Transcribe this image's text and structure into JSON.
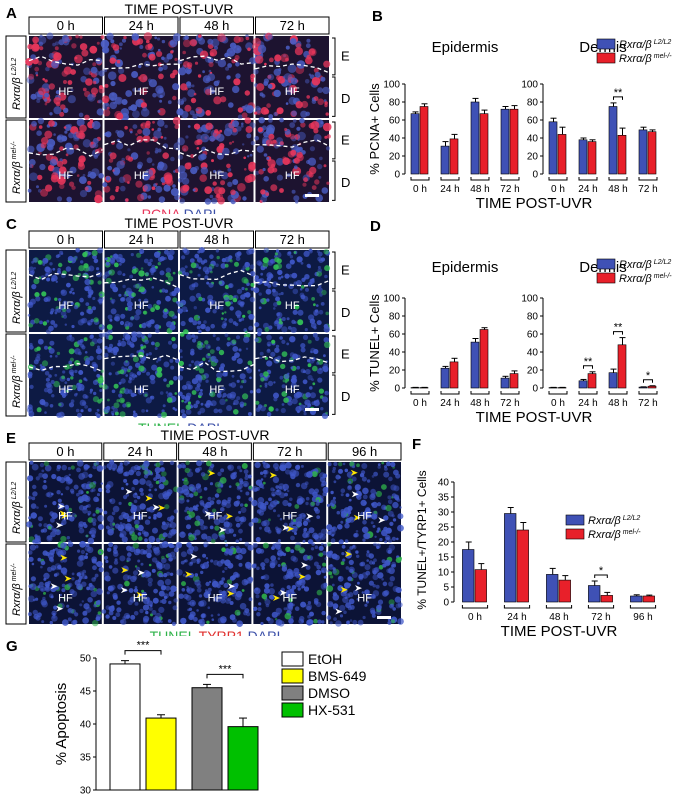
{
  "panels": {
    "A": {
      "letter": "A",
      "header": "TIME POST-UVR",
      "times": [
        "0 h",
        "24 h",
        "48 h",
        "72 h"
      ],
      "rows": [
        {
          "label": "Rxrα/β",
          "sup": "L2/L2"
        },
        {
          "label": "Rxrα/β",
          "sup": "mel-/-"
        }
      ],
      "layers": [
        "E",
        "D"
      ],
      "hf": "HF",
      "stain1": "PCNA",
      "stain2": "DAPI",
      "colors": {
        "stain1": "#e8365b",
        "stain2": "#3b4fa8"
      }
    },
    "C": {
      "letter": "C",
      "header": "TIME POST-UVR",
      "times": [
        "0 h",
        "24 h",
        "48 h",
        "72 h"
      ],
      "rows": [
        {
          "label": "Rxrα/β",
          "sup": "L2/L2"
        },
        {
          "label": "Rxrα/β",
          "sup": "mel-/-"
        }
      ],
      "layers": [
        "E",
        "D"
      ],
      "hf": "HF",
      "stain1": "TUNEL",
      "stain2": "DAPI",
      "colors": {
        "stain1": "#2fb34a",
        "stain2": "#3b4fa8"
      }
    },
    "E": {
      "letter": "E",
      "header": "TIME POST-UVR",
      "times": [
        "0 h",
        "24 h",
        "48 h",
        "72 h",
        "96 h"
      ],
      "rows": [
        {
          "label": "Rxrα/β",
          "sup": "L2/L2"
        },
        {
          "label": "Rxrα/β",
          "sup": "mel-/-"
        }
      ],
      "hf": "HF",
      "stain1": "TUNEL",
      "stain2": "TYRP1",
      "stain3": "DAPI",
      "colors": {
        "stain1": "#2fb34a",
        "stain2": "#e0302e",
        "stain3": "#3b4fa8"
      }
    }
  },
  "legend": {
    "ctrl": {
      "label": "Rxrα/β",
      "sup": "L2/L2"
    },
    "mut": {
      "label": "Rxrα/β",
      "sup": "mel-/-"
    }
  },
  "colors": {
    "ctrl": "#3f51b5",
    "mut": "#e8202a"
  },
  "chart_data": [
    {
      "panel": "B",
      "type": "bar",
      "ylabel": "% PCNA+ Cells",
      "xlabel": "TIME POST-UVR",
      "ylim": [
        0,
        100
      ],
      "yticks": [
        0,
        20,
        40,
        60,
        80,
        100
      ],
      "subcharts": [
        {
          "title": "Epidermis",
          "categories": [
            "0 h",
            "24 h",
            "48 h",
            "72 h"
          ],
          "series": [
            {
              "values": [
                67,
                31,
                80,
                72
              ],
              "errors": [
                2,
                5,
                4,
                3
              ]
            },
            {
              "values": [
                75,
                39,
                67,
                72
              ],
              "errors": [
                3,
                5,
                4,
                4
              ]
            }
          ],
          "annotations": []
        },
        {
          "title": "Dermis",
          "categories": [
            "0 h",
            "24 h",
            "48 h",
            "72 h"
          ],
          "series": [
            {
              "values": [
                58,
                38,
                75,
                49
              ],
              "errors": [
                4,
                2,
                4,
                3
              ]
            },
            {
              "values": [
                44,
                36,
                43,
                47
              ],
              "errors": [
                8,
                2,
                8,
                2
              ]
            }
          ],
          "annotations": [
            {
              "category": 2,
              "text": "**"
            }
          ]
        }
      ]
    },
    {
      "panel": "D",
      "type": "bar",
      "ylabel": "% TUNEL+ Cells",
      "xlabel": "TIME POST-UVR",
      "ylim": [
        0,
        100
      ],
      "yticks": [
        0,
        20,
        40,
        60,
        80,
        100
      ],
      "subcharts": [
        {
          "title": "Epidermis",
          "categories": [
            "0 h",
            "24 h",
            "48 h",
            "72 h"
          ],
          "series": [
            {
              "values": [
                0.5,
                22,
                51,
                11
              ],
              "errors": [
                0.2,
                2,
                4,
                2
              ]
            },
            {
              "values": [
                0.5,
                29,
                65,
                16
              ],
              "errors": [
                0.2,
                4,
                2,
                3
              ]
            }
          ],
          "annotations": []
        },
        {
          "title": "Dermis",
          "categories": [
            "0 h",
            "24 h",
            "48 h",
            "72 h"
          ],
          "series": [
            {
              "values": [
                0.5,
                8,
                17,
                1
              ],
              "errors": [
                0.2,
                1.5,
                4,
                0.3
              ]
            },
            {
              "values": [
                0.5,
                16,
                48,
                2
              ],
              "errors": [
                0.2,
                2,
                8,
                0.5
              ]
            }
          ],
          "annotations": [
            {
              "category": 1,
              "text": "**"
            },
            {
              "category": 2,
              "text": "**"
            },
            {
              "category": 3,
              "text": "*"
            }
          ]
        }
      ]
    },
    {
      "panel": "F",
      "type": "bar",
      "ylabel": "% TUNEL+/TYRP1+ Cells",
      "xlabel": "TIME POST-UVR",
      "ylim": [
        0,
        40
      ],
      "yticks": [
        0,
        5,
        10,
        15,
        20,
        25,
        30,
        35,
        40
      ],
      "categories": [
        "0 h",
        "24 h",
        "48 h",
        "72 h",
        "96 h"
      ],
      "series": [
        {
          "values": [
            17.5,
            29.5,
            9.2,
            5.5,
            2.0
          ],
          "errors": [
            2.5,
            2.0,
            2.0,
            1.5,
            0.4
          ]
        },
        {
          "values": [
            10.8,
            24.0,
            7.3,
            2.2,
            2.0
          ],
          "errors": [
            2.0,
            2.5,
            1.5,
            1.0,
            0.3
          ]
        }
      ],
      "annotations": [
        {
          "category": 3,
          "text": "*"
        }
      ]
    },
    {
      "panel": "G",
      "type": "bar",
      "ylabel": "% Apoptosis",
      "ylim": [
        30,
        50
      ],
      "yticks": [
        30,
        35,
        40,
        45,
        50
      ],
      "categories": [
        "EtOH",
        "BMS-649",
        "DMSO",
        "HX-531"
      ],
      "values": [
        49.1,
        40.9,
        45.5,
        39.6
      ],
      "errors": [
        0.5,
        0.5,
        0.5,
        1.3
      ],
      "colors": [
        "#ffffff",
        "#ffff00",
        "#808080",
        "#00c000"
      ],
      "legend": [
        "EtOH",
        "BMS-649",
        "DMSO",
        "HX-531"
      ],
      "annotations": [
        {
          "from": 0,
          "to": 1,
          "text": "***"
        },
        {
          "from": 2,
          "to": 3,
          "text": "***"
        }
      ]
    }
  ]
}
